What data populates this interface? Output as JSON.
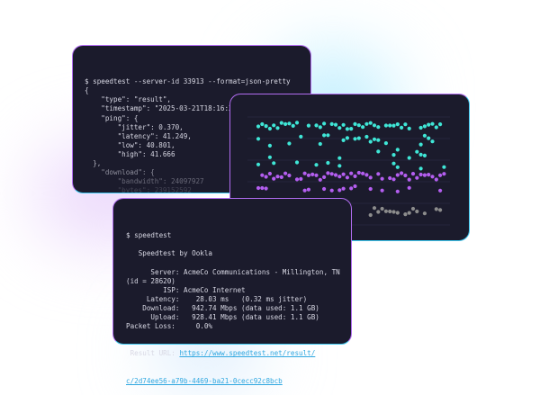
{
  "back_terminal": {
    "lines": [
      "$ speedtest --server-id 33913 --format=json-pretty",
      "{",
      "    \"type\": \"result\",",
      "    \"timestamp\": \"2025-03-21T18:16:36Z\",",
      "    \"ping\": {",
      "        \"jitter\": 0.370,",
      "        \"latency\": 41.249,",
      "        \"low\": 40.801,",
      "        \"high\": 41.666",
      "  },",
      "    \"download\": {",
      "        \"bandwidth\": 24097927",
      "        \"bytes\": 239152592"
    ]
  },
  "scatter_card": {
    "colors": {
      "top": "#3fe6d6",
      "middle": "#b45ef0",
      "bottom": "#8c8c8c"
    }
  },
  "front_terminal": {
    "lines": [
      "$ speedtest",
      "",
      "   Speedtest by Ookla",
      "",
      "      Server: AcmeCo Communications - Millington, TN",
      "(id = 28620)",
      "         ISP: AcmeCo Internet",
      "     Latency:    28.03 ms   (0.32 ms jitter)",
      "    Download:   942.74 Mbps (data used: 1.1 GB)",
      "      Upload:   928.41 Mbps (data used: 1.1 GB)",
      "Packet Loss:     0.0%"
    ],
    "result_label": " Result URL: ",
    "result_url_1": "https://www.speedtest.net/result/",
    "result_url_2": "c/2d74ee56-a79b-4469-ba21-0cecc92c8bcb"
  },
  "colors": {
    "card_bg": "#1b1b2c",
    "link": "#2fa7e0",
    "border_purple": "#b06cf0",
    "border_cyan": "#3fc8f0"
  }
}
